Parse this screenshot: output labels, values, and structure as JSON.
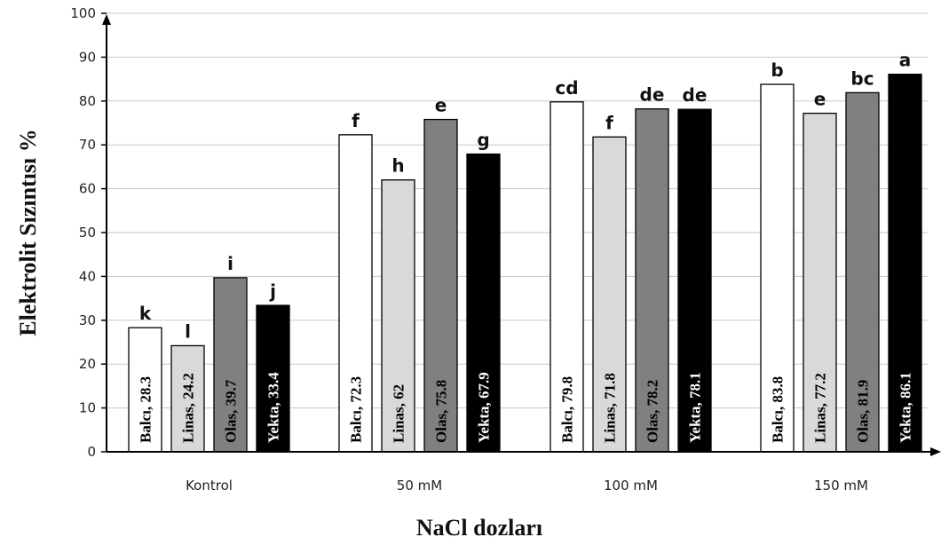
{
  "chart_data": {
    "type": "bar",
    "ylabel": "Elektrolit Sızıntısı %",
    "xlabel": "NaCl dozları",
    "ylim": [
      0,
      100
    ],
    "yticks": [
      0,
      10,
      20,
      30,
      40,
      50,
      60,
      70,
      80,
      90,
      100
    ],
    "grid": true,
    "categories": [
      "Kontrol",
      "50 mM",
      "100 mM",
      "150 mM"
    ],
    "series": [
      {
        "name": "Balcı",
        "color": "#ffffff",
        "label_color": "#000000",
        "values": [
          28.3,
          72.3,
          79.8,
          83.8
        ],
        "bar_labels": [
          "Balcı, 28.3",
          "Balcı, 72.3",
          "Balcı, 79.8",
          "Balcı, 83.8"
        ],
        "letters": [
          "k",
          "f",
          "cd",
          "b"
        ]
      },
      {
        "name": "Linas",
        "color": "#d9d9d9",
        "label_color": "#000000",
        "values": [
          24.2,
          62,
          71.8,
          77.2
        ],
        "bar_labels": [
          "Linas, 24.2",
          "Linas, 62",
          "Linas, 71.8",
          "Linas, 77.2"
        ],
        "letters": [
          "l",
          "h",
          "f",
          "e"
        ]
      },
      {
        "name": "Olas",
        "color": "#808080",
        "label_color": "#000000",
        "values": [
          39.7,
          75.8,
          78.2,
          81.9
        ],
        "bar_labels": [
          "Olas, 39.7",
          "Olas, 75.8",
          "Olas, 78.2",
          "Olas, 81.9"
        ],
        "letters": [
          "i",
          "e",
          "de",
          "bc"
        ]
      },
      {
        "name": "Yekta",
        "color": "#000000",
        "label_color": "#ffffff",
        "values": [
          33.4,
          67.9,
          78.1,
          86.1
        ],
        "bar_labels": [
          "Yekta, 33.4",
          "Yekta, 67.9",
          "Yekta, 78.1",
          "Yekta, 86.1"
        ],
        "letters": [
          "j",
          "g",
          "de",
          "a"
        ]
      }
    ]
  }
}
